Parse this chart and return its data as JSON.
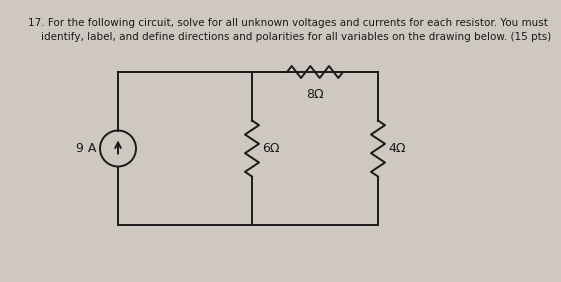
{
  "title_line1": "17. For the following circuit, solve for all unknown voltages and currents for each resistor. You must",
  "title_line2": "    identify, label, and define directions and polarities for all variables on the drawing below. (15 pts)",
  "bg_color": "#cec8c0",
  "circuit_color": "#1a1a1a",
  "text_color": "#1a1a1a",
  "current_source_label": "9 A",
  "r1_label": "8Ω",
  "r2_label": "6Ω",
  "r3_label": "4Ω",
  "title_fontsize": 7.5,
  "label_fontsize": 9.0
}
